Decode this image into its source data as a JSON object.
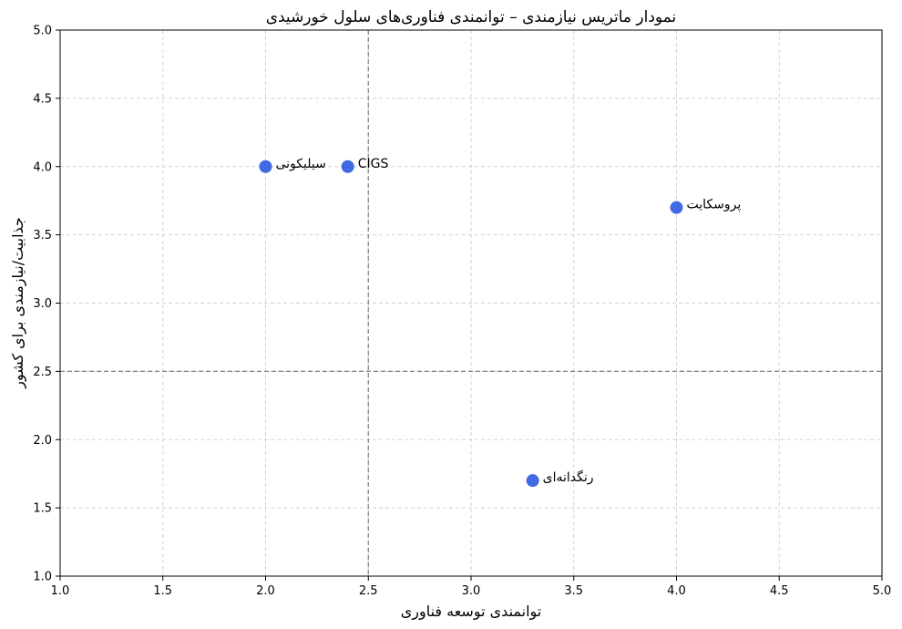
{
  "chart_data": {
    "type": "scatter",
    "title": "نمودار ماتریس نیازمندی – توانمندی فناوری‌های سلول خورشیدی",
    "xlabel": "توانمندی توسعه فناوری",
    "ylabel": "جذابیت/نیازمندی برای کشور",
    "xlim": [
      1.0,
      5.0
    ],
    "ylim": [
      1.0,
      5.0
    ],
    "xticks": [
      "1.0",
      "1.5",
      "2.0",
      "2.5",
      "3.0",
      "3.5",
      "4.0",
      "4.5",
      "5.0"
    ],
    "yticks": [
      "1.0",
      "1.5",
      "2.0",
      "2.5",
      "3.0",
      "3.5",
      "4.0",
      "4.5",
      "5.0"
    ],
    "grid": true,
    "reference_lines": {
      "x": 2.5,
      "y": 2.5
    },
    "point_color": "#4169e1",
    "points": [
      {
        "label": "سیلیکونی",
        "x": 2.0,
        "y": 4.0
      },
      {
        "label": "CIGS",
        "x": 2.4,
        "y": 4.0
      },
      {
        "label": "پروسکایت",
        "x": 4.0,
        "y": 3.7
      },
      {
        "label": "رنگدانه‌ای",
        "x": 3.3,
        "y": 1.7
      }
    ]
  }
}
